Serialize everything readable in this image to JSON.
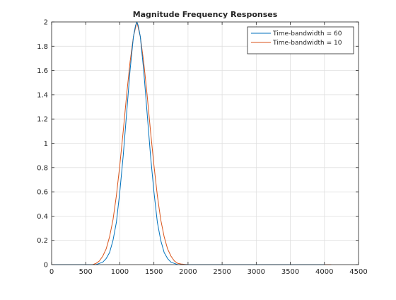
{
  "chart_data": {
    "type": "line",
    "title": "Magnitude Frequency Responses",
    "xlabel": "",
    "ylabel": "",
    "xlim": [
      0,
      4500
    ],
    "ylim": [
      0,
      2
    ],
    "x_ticks": [
      0,
      500,
      1000,
      1500,
      2000,
      2500,
      3000,
      3500,
      4000,
      4500
    ],
    "x_tick_labels": [
      "0",
      "500",
      "1000",
      "1500",
      "2000",
      "2500",
      "3000",
      "3500",
      "4000",
      "4500"
    ],
    "y_ticks": [
      0,
      0.2,
      0.4,
      0.6,
      0.8,
      1,
      1.2,
      1.4,
      1.6,
      1.8,
      2
    ],
    "y_tick_labels": [
      "0",
      "0.2",
      "0.4",
      "0.6",
      "0.8",
      "1",
      "1.2",
      "1.4",
      "1.6",
      "1.8",
      "2"
    ],
    "grid": true,
    "legend_position": "top-right",
    "series": [
      {
        "name": "Time-bandwidth = 60",
        "color": "#0072bd",
        "x": [
          0,
          650,
          700,
          750,
          800,
          850,
          900,
          950,
          1000,
          1050,
          1100,
          1150,
          1200,
          1230,
          1250,
          1270,
          1300,
          1350,
          1400,
          1450,
          1500,
          1550,
          1600,
          1650,
          1700,
          1750,
          1800,
          1850,
          4000
        ],
        "y": [
          0,
          0,
          0.01,
          0.02,
          0.05,
          0.1,
          0.2,
          0.35,
          0.6,
          0.9,
          1.25,
          1.6,
          1.88,
          1.97,
          2.0,
          1.97,
          1.88,
          1.6,
          1.25,
          0.9,
          0.6,
          0.35,
          0.2,
          0.1,
          0.05,
          0.02,
          0.01,
          0,
          0
        ]
      },
      {
        "name": "Time-bandwidth = 10",
        "color": "#d95319",
        "x": [
          0,
          600,
          650,
          700,
          750,
          800,
          850,
          900,
          950,
          1000,
          1050,
          1100,
          1150,
          1200,
          1250,
          1300,
          1350,
          1400,
          1450,
          1500,
          1550,
          1600,
          1650,
          1700,
          1750,
          1800,
          1850,
          1900,
          1950,
          2000,
          4100
        ],
        "y": [
          0,
          0,
          0.01,
          0.03,
          0.07,
          0.13,
          0.23,
          0.37,
          0.57,
          0.82,
          1.1,
          1.4,
          1.67,
          1.88,
          2.0,
          1.88,
          1.67,
          1.4,
          1.1,
          0.82,
          0.57,
          0.37,
          0.23,
          0.13,
          0.07,
          0.03,
          0.01,
          0.005,
          0.002,
          0,
          0
        ]
      }
    ]
  }
}
